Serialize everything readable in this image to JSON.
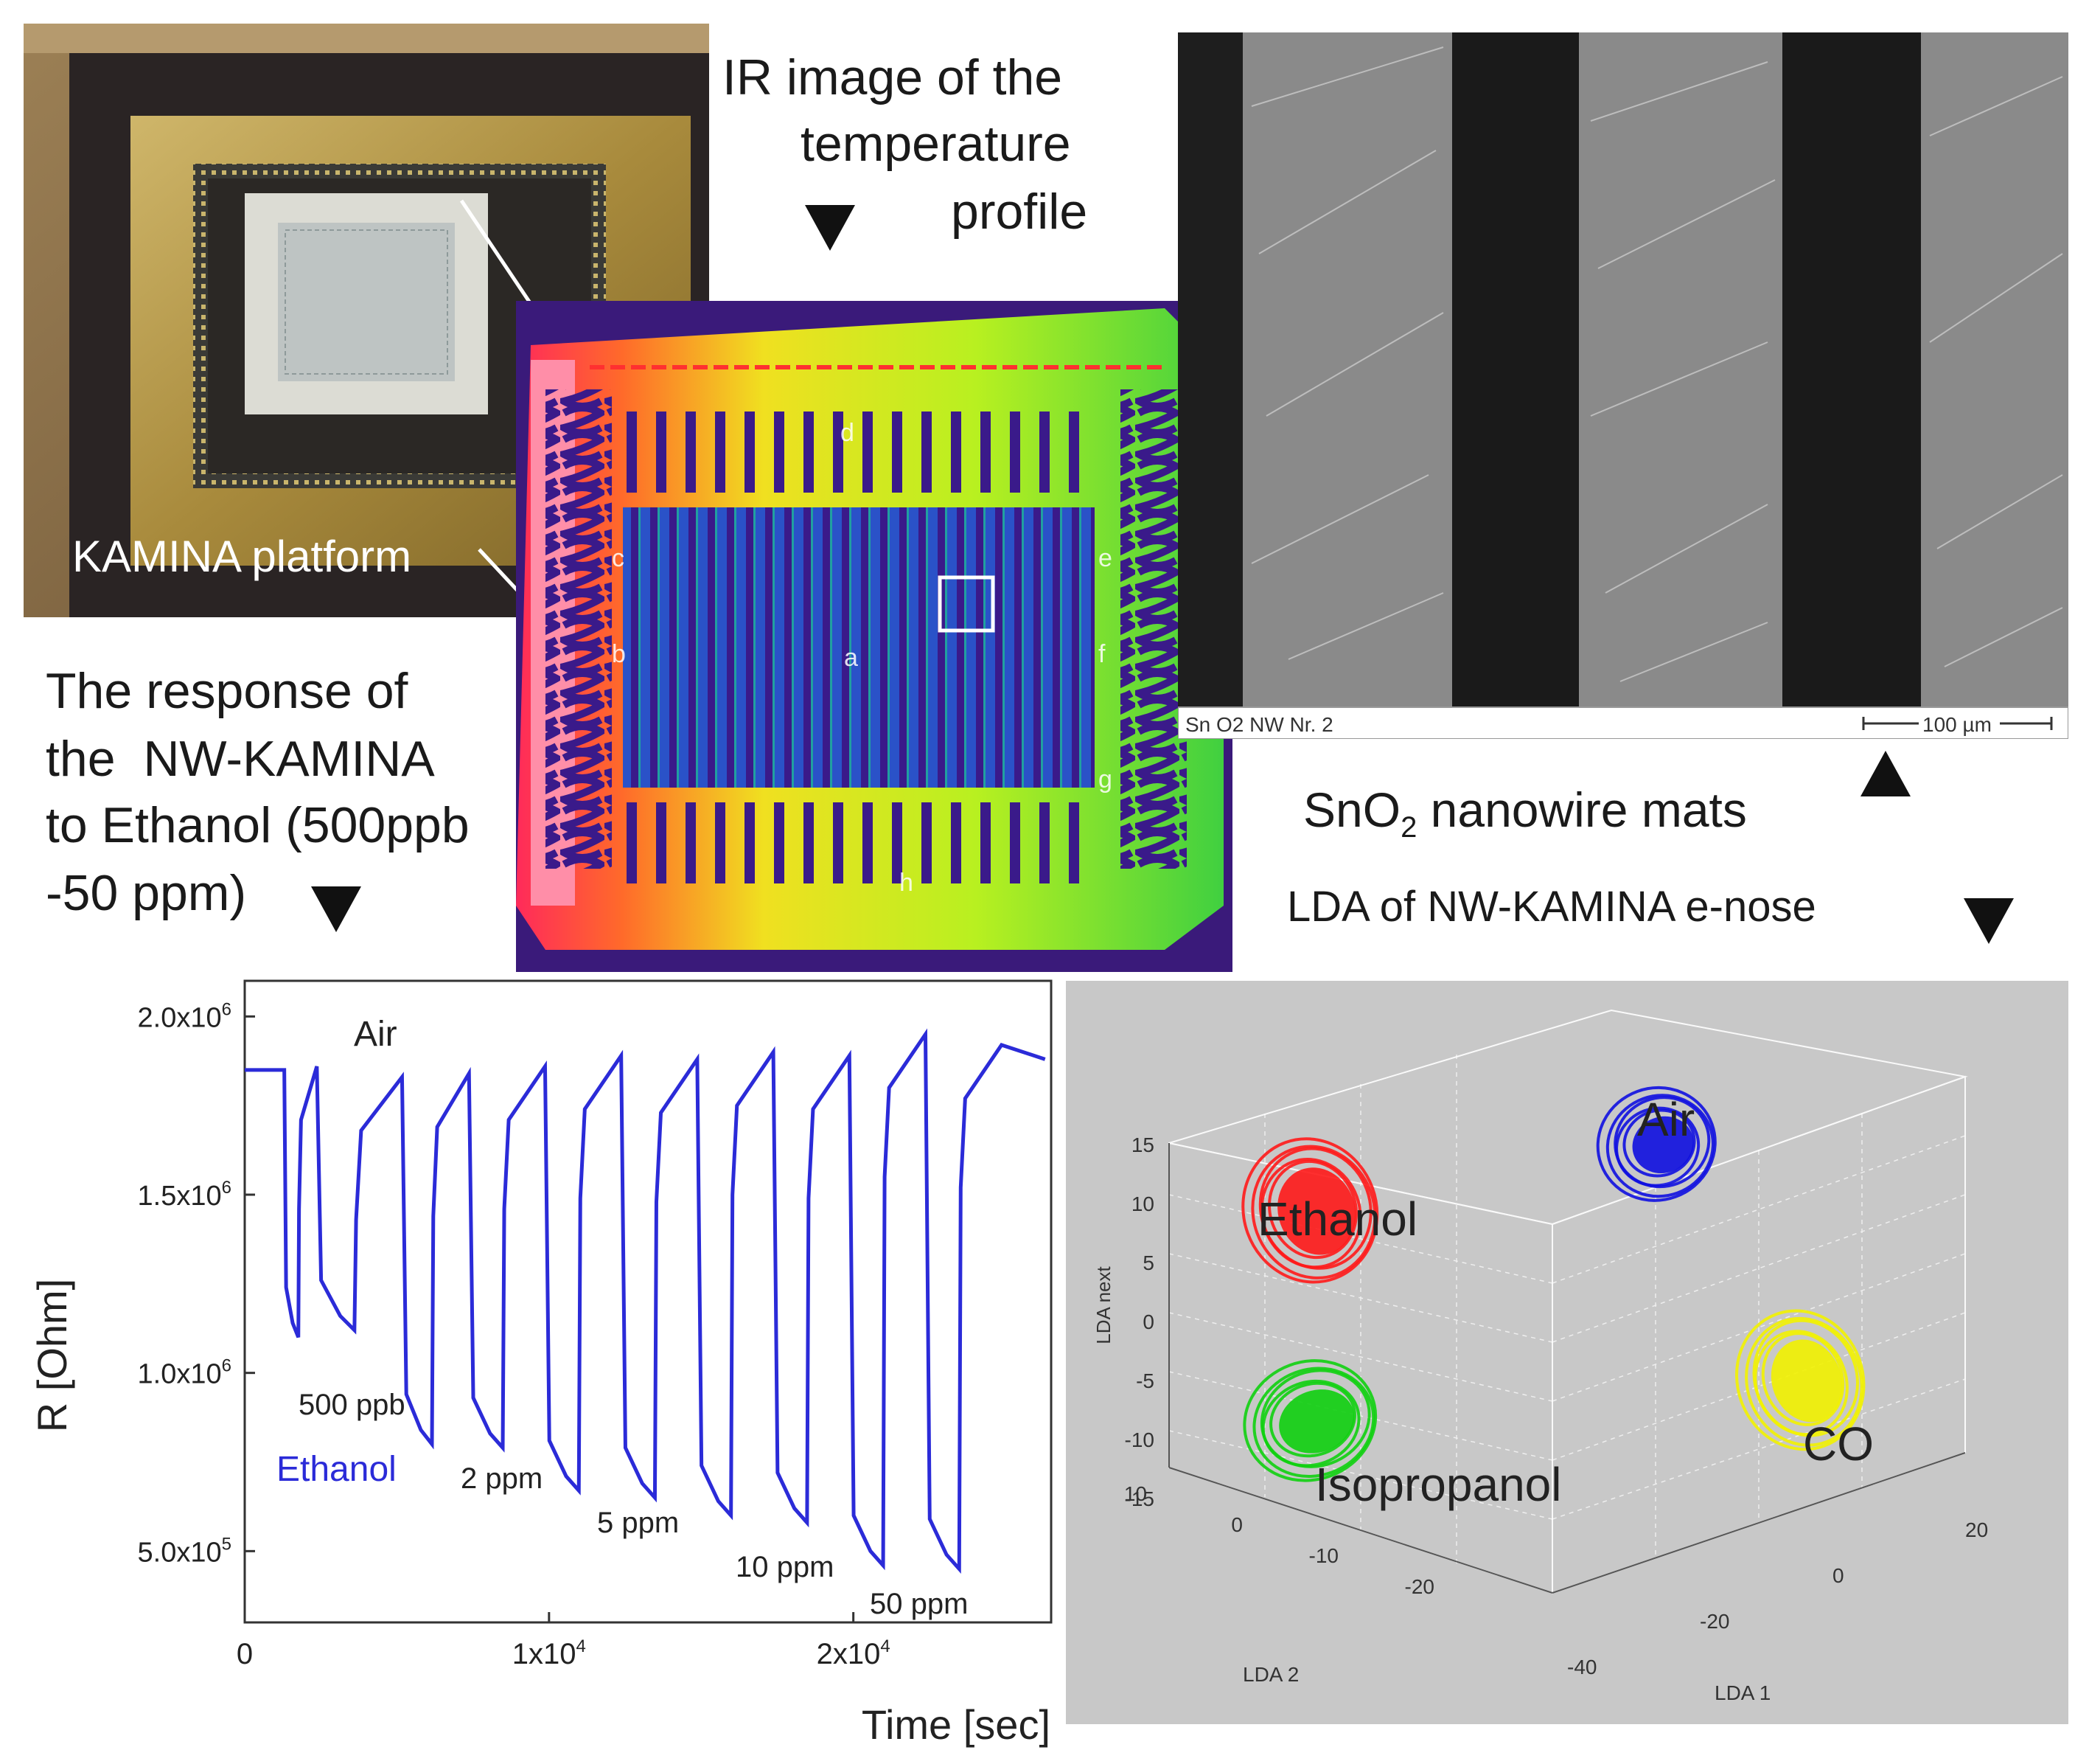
{
  "photo": {
    "label": "KAMINA platform"
  },
  "ir": {
    "title_l1": "IR image of the",
    "title_l2": "temperature",
    "title_l3": "profile",
    "zones": [
      "a",
      "b",
      "c",
      "d",
      "e",
      "f",
      "g",
      "h"
    ]
  },
  "sem": {
    "caption": "Sn O2 NW Nr. 2",
    "scale": "100 µm",
    "label_main": "SnO",
    "label_sub": "2",
    "label_rest": " nanowire mats"
  },
  "response": {
    "l1": "The response of",
    "l2": "the  NW-KAMINA",
    "l3": "to Ethanol (500ppb",
    "l4": "-50 ppm)"
  },
  "lda_title": "LDA of NW-KAMINA e-nose",
  "colors": {
    "trace": "#2b2bd8",
    "ethanol": "#ff1a1a",
    "air": "#1010e0",
    "co": "#f2f200",
    "isopropanol": "#10d010",
    "lda_bg": "#c8c8c8"
  },
  "chart_data": [
    {
      "type": "line",
      "title": "",
      "xlabel": "Time [sec]",
      "ylabel": "R [Ohm]",
      "xlim": [
        0,
        26500
      ],
      "ylim": [
        300000,
        2100000
      ],
      "x_ticks": [
        "0",
        "1x10",
        "2x10"
      ],
      "x_tick_exp": "4",
      "y_ticks": [
        {
          "mant": "2.0x10",
          "exp": "6"
        },
        {
          "mant": "1.5x10",
          "exp": "6"
        },
        {
          "mant": "1.0x10",
          "exp": "6"
        },
        {
          "mant": "5.0x10",
          "exp": "5"
        }
      ],
      "series": [
        {
          "name": "Ethanol",
          "pulses": [
            {
              "t0": 1300,
              "t1": 2400,
              "min": 1100000,
              "recover": 1860000
            },
            {
              "t0": 2450,
              "t1": 5200,
              "min": 1120000,
              "recover": 1830000
            },
            {
              "t0": 5250,
              "t1": 7400,
              "min": 800000,
              "recover": 1840000
            },
            {
              "t0": 7450,
              "t1": 9900,
              "min": 790000,
              "recover": 1860000
            },
            {
              "t0": 9950,
              "t1": 12400,
              "min": 670000,
              "recover": 1890000
            },
            {
              "t0": 12450,
              "t1": 14900,
              "min": 650000,
              "recover": 1880000
            },
            {
              "t0": 14950,
              "t1": 17400,
              "min": 600000,
              "recover": 1900000
            },
            {
              "t0": 17450,
              "t1": 19900,
              "min": 580000,
              "recover": 1890000
            },
            {
              "t0": 19950,
              "t1": 22400,
              "min": 460000,
              "recover": 1950000
            },
            {
              "t0": 22450,
              "t1": 24900,
              "min": 450000,
              "recover": 1920000
            }
          ],
          "baseline": 1850000
        }
      ],
      "annotations": [
        "Air",
        "500 ppb",
        "Ethanol",
        "2 ppm",
        "5 ppm",
        "10 ppm",
        "50 ppm"
      ]
    },
    {
      "type": "scatter",
      "title": "",
      "xlabel": "LDA 1",
      "ylabel": "LDA 2",
      "zlabel": "LDA next",
      "z_ticks": [
        "15",
        "10",
        "5",
        "0",
        "-5",
        "-10",
        "-15"
      ],
      "y_ticks": [
        "10",
        "0",
        "-10",
        "-20"
      ],
      "x_ticks": [
        "-40",
        "-20",
        "0",
        "20"
      ],
      "clusters": [
        {
          "name": "Ethanol",
          "color": "#ff1a1a"
        },
        {
          "name": "Air",
          "color": "#1010e0"
        },
        {
          "name": "CO",
          "color": "#f2f200"
        },
        {
          "name": "Isopropanol",
          "color": "#10d010"
        }
      ]
    }
  ]
}
